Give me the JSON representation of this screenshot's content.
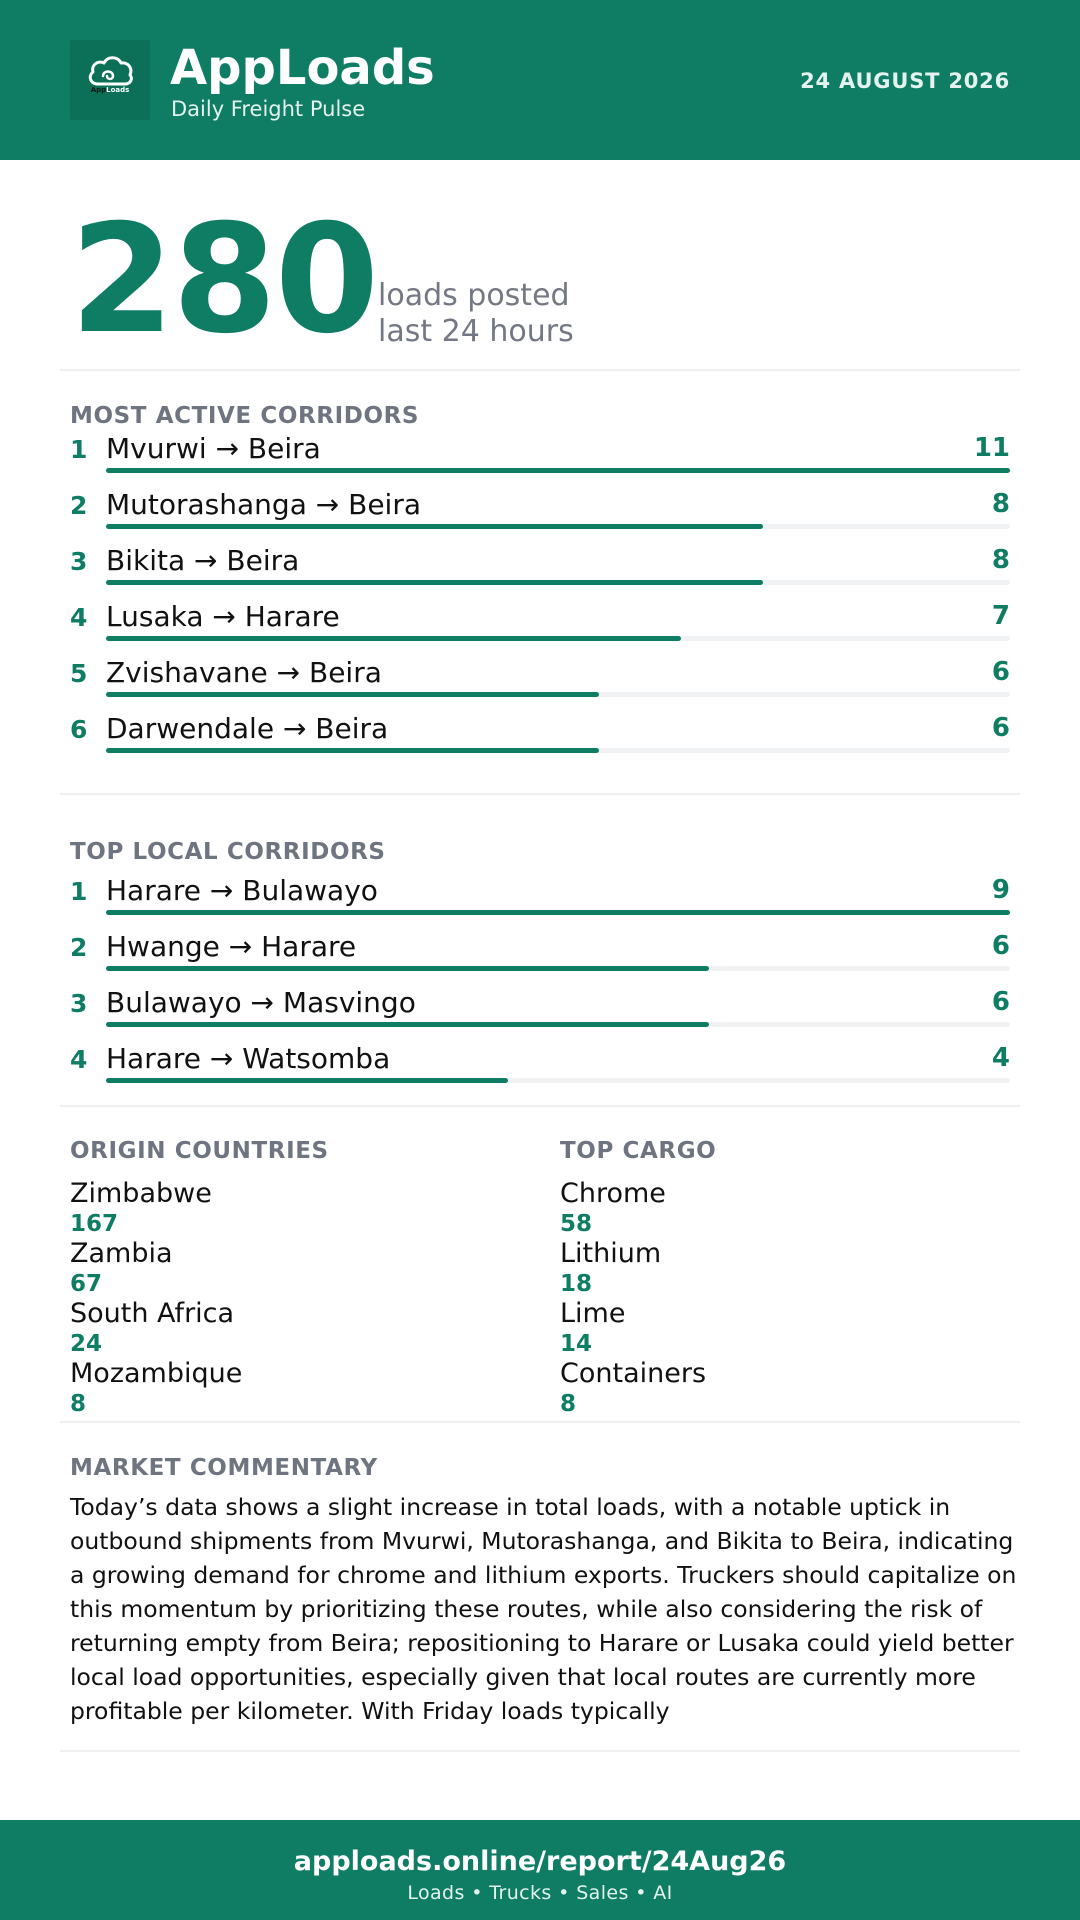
{
  "header": {
    "logo_icon": "cloud-icon",
    "logo_text_a": "App",
    "logo_text_b": "Loads",
    "brand": "AppLoads",
    "tagline": "Daily Freight Pulse",
    "date": "24 AUGUST 2026",
    "accent_color": "#0e7d64"
  },
  "hero": {
    "count": "280",
    "line1": "loads posted",
    "line2": "last 24 hours"
  },
  "active_corridors": {
    "title": "MOST ACTIVE CORRIDORS",
    "max": 11,
    "items": [
      {
        "rank": "1",
        "route": "Mvurwi → Beira",
        "count": "11",
        "value": 11
      },
      {
        "rank": "2",
        "route": "Mutorashanga → Beira",
        "count": "8",
        "value": 8
      },
      {
        "rank": "3",
        "route": "Bikita → Beira",
        "count": "8",
        "value": 8
      },
      {
        "rank": "4",
        "route": "Lusaka → Harare",
        "count": "7",
        "value": 7
      },
      {
        "rank": "5",
        "route": "Zvishavane → Beira",
        "count": "6",
        "value": 6
      },
      {
        "rank": "6",
        "route": "Darwendale → Beira",
        "count": "6",
        "value": 6
      }
    ]
  },
  "local_corridors": {
    "title": "TOP LOCAL CORRIDORS",
    "max": 9,
    "items": [
      {
        "rank": "1",
        "route": "Harare → Bulawayo",
        "count": "9",
        "value": 9
      },
      {
        "rank": "2",
        "route": "Hwange → Harare",
        "count": "6",
        "value": 6
      },
      {
        "rank": "3",
        "route": "Bulawayo → Masvingo",
        "count": "6",
        "value": 6
      },
      {
        "rank": "4",
        "route": "Harare → Watsomba",
        "count": "4",
        "value": 4
      }
    ]
  },
  "origin_countries": {
    "title": "ORIGIN COUNTRIES",
    "items": [
      {
        "name": "Zimbabwe",
        "value": "167"
      },
      {
        "name": "Zambia",
        "value": "67"
      },
      {
        "name": "South Africa",
        "value": "24"
      },
      {
        "name": "Mozambique",
        "value": "8"
      }
    ]
  },
  "top_cargo": {
    "title": "TOP CARGO",
    "items": [
      {
        "name": "Chrome",
        "value": "58"
      },
      {
        "name": "Lithium",
        "value": "18"
      },
      {
        "name": "Lime",
        "value": "14"
      },
      {
        "name": "Containers",
        "value": "8"
      }
    ]
  },
  "commentary": {
    "title": "MARKET COMMENTARY",
    "text": "Today’s data shows a slight increase in total loads, with a notable uptick in outbound shipments from Mvurwi, Mutorashanga, and Bikita to Beira, indicating a growing demand for chrome and lithium exports. Truckers should capitalize on this momentum by prioritizing these routes, while also considering the risk of returning empty from Beira; repositioning to Harare or Lusaka could yield better local load opportunities, especially given that local routes are currently more profitable per kilometer. With Friday loads typically"
  },
  "footer": {
    "url": "apploads.online/report/24Aug26",
    "tagline": "Loads • Trucks • Sales • AI"
  }
}
